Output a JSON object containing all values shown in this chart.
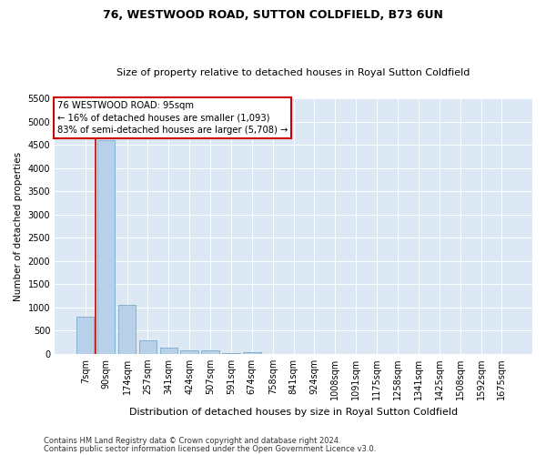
{
  "title1": "76, WESTWOOD ROAD, SUTTON COLDFIELD, B73 6UN",
  "title2": "Size of property relative to detached houses in Royal Sutton Coldfield",
  "xlabel": "Distribution of detached houses by size in Royal Sutton Coldfield",
  "ylabel": "Number of detached properties",
  "footnote1": "Contains HM Land Registry data © Crown copyright and database right 2024.",
  "footnote2": "Contains public sector information licensed under the Open Government Licence v3.0.",
  "annotation_line1": "76 WESTWOOD ROAD: 95sqm",
  "annotation_line2": "← 16% of detached houses are smaller (1,093)",
  "annotation_line3": "83% of semi-detached houses are larger (5,708) →",
  "bar_color": "#b8d0e8",
  "bar_edge_color": "#7aaad0",
  "ref_line_color": "#cc0000",
  "annotation_box_color": "#cc0000",
  "background_color": "#dce9f5",
  "categories": [
    "7sqm",
    "90sqm",
    "174sqm",
    "257sqm",
    "341sqm",
    "424sqm",
    "507sqm",
    "591sqm",
    "674sqm",
    "758sqm",
    "841sqm",
    "924sqm",
    "1008sqm",
    "1091sqm",
    "1175sqm",
    "1258sqm",
    "1341sqm",
    "1425sqm",
    "1508sqm",
    "1592sqm",
    "1675sqm"
  ],
  "values": [
    800,
    4600,
    1050,
    290,
    130,
    80,
    80,
    25,
    30,
    0,
    0,
    0,
    0,
    0,
    0,
    0,
    0,
    0,
    0,
    0,
    0
  ],
  "ylim": [
    0,
    5500
  ],
  "yticks": [
    0,
    500,
    1000,
    1500,
    2000,
    2500,
    3000,
    3500,
    4000,
    4500,
    5000,
    5500
  ],
  "ref_bar_index": 1,
  "title1_fontsize": 9,
  "title2_fontsize": 8,
  "ylabel_fontsize": 7.5,
  "xlabel_fontsize": 8,
  "tick_fontsize": 7,
  "footnote_fontsize": 6
}
